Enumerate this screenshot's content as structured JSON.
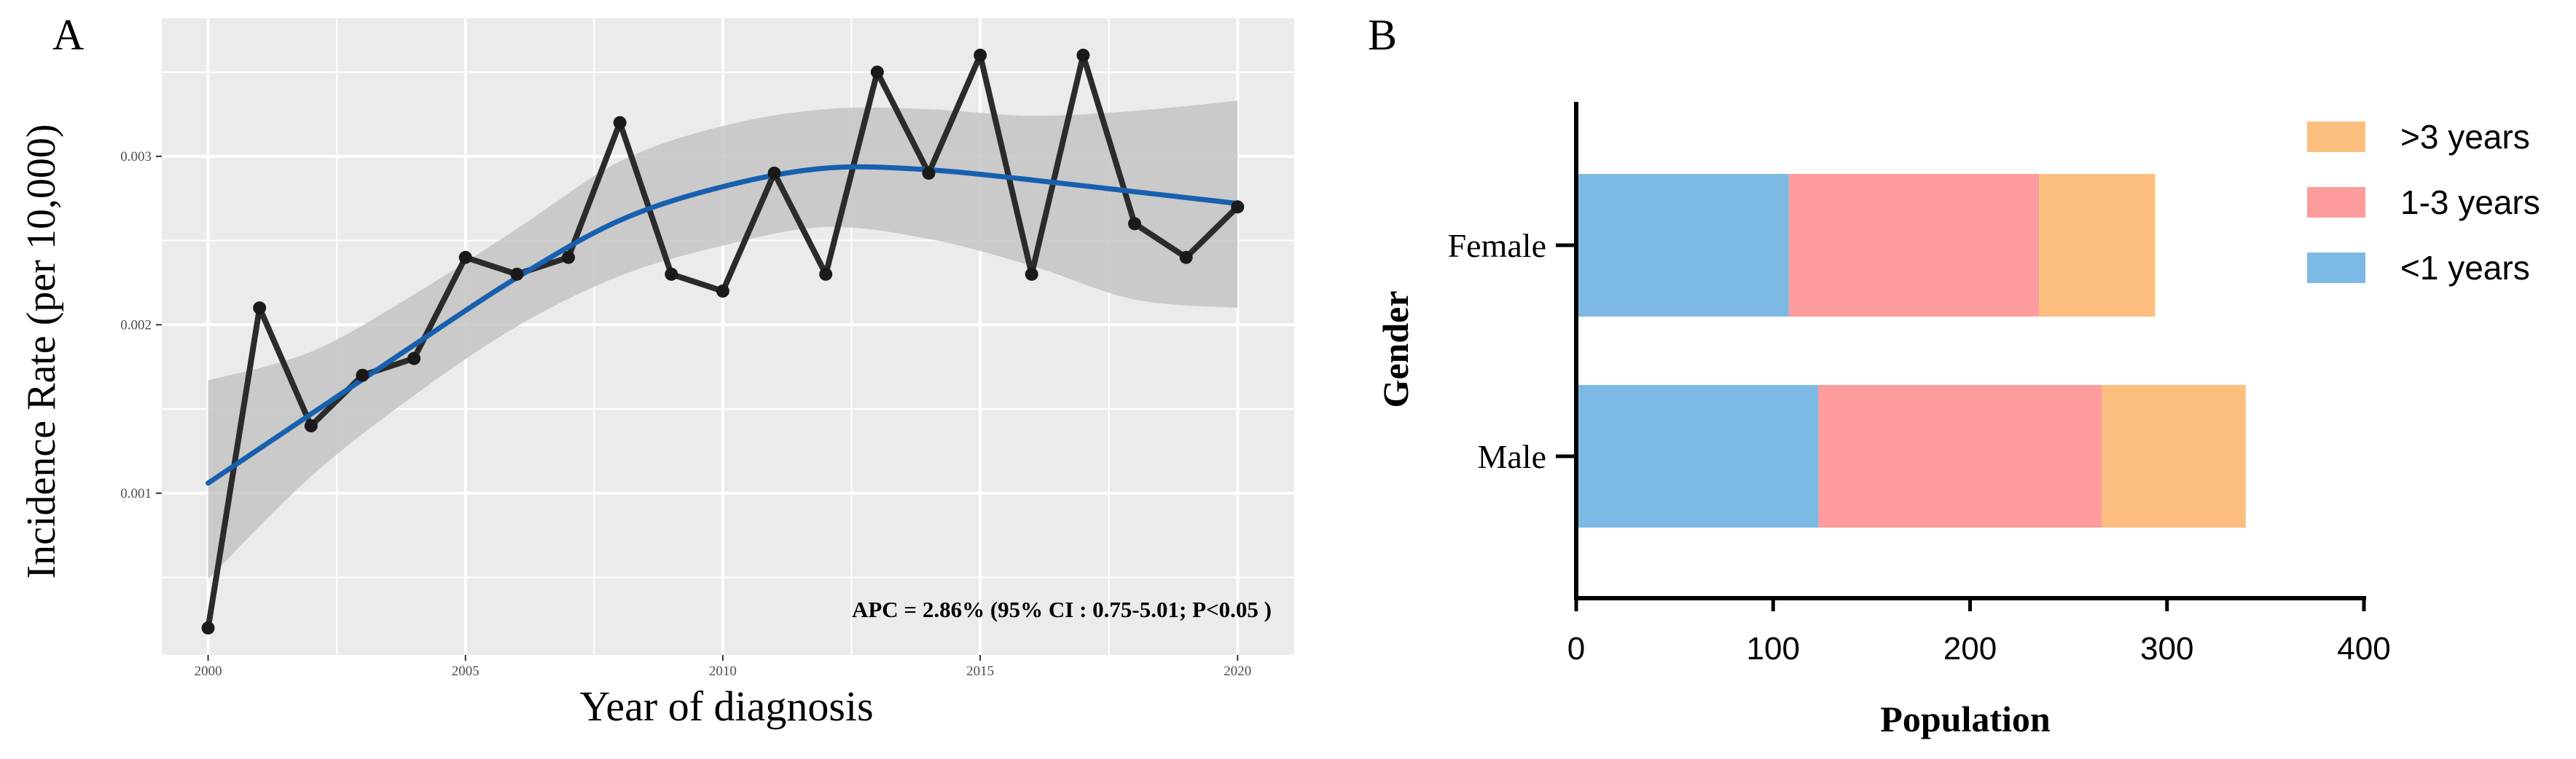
{
  "chart_data": [
    {
      "panel_label": "A",
      "type": "line",
      "xlabel": "Year of diagnosis",
      "ylabel": "Incidence Rate (per 10,000)",
      "xlim": [
        1999.1,
        2021.1
      ],
      "ylim": [
        4e-05,
        0.00382
      ],
      "x_ticks": [
        2000,
        2005,
        2010,
        2015,
        2020
      ],
      "y_ticks": [
        0.001,
        0.002,
        0.003
      ],
      "y_tick_labels": [
        "0.001",
        "0.002",
        "0.003"
      ],
      "grid": true,
      "annotation": "APC = 2.86% (95% CI : 0.75-5.01; P<0.05 )",
      "series": [
        {
          "name": "Observed incidence",
          "x": [
            2000,
            2001,
            2002,
            2003,
            2004,
            2005,
            2006,
            2007,
            2008,
            2009,
            2010,
            2011,
            2012,
            2013,
            2014,
            2015,
            2016,
            2017,
            2018,
            2019,
            2020
          ],
          "values": [
            0.0002,
            0.0021,
            0.0014,
            0.0017,
            0.0018,
            0.0024,
            0.0023,
            0.0024,
            0.0032,
            0.0023,
            0.0022,
            0.0029,
            0.0023,
            0.0035,
            0.0029,
            0.0036,
            0.0023,
            0.0036,
            0.0026,
            0.0024,
            0.0027
          ]
        },
        {
          "name": "Smoothed fit",
          "x": [
            2000,
            2002,
            2004,
            2006,
            2008,
            2010,
            2012,
            2014,
            2016,
            2018,
            2020
          ],
          "values": [
            0.00106,
            0.00147,
            0.00188,
            0.00228,
            0.00262,
            0.00282,
            0.00293,
            0.00292,
            0.00286,
            0.00279,
            0.00272
          ],
          "ci_lower": [
            0.00049,
            0.0011,
            0.00158,
            0.00199,
            0.00229,
            0.00247,
            0.00258,
            0.00251,
            0.00235,
            0.00215,
            0.0021
          ],
          "ci_upper": [
            0.00167,
            0.00184,
            0.00218,
            0.00257,
            0.00297,
            0.00318,
            0.00328,
            0.00328,
            0.00324,
            0.00327,
            0.00333
          ]
        }
      ],
      "colors": {
        "observed": "#2b2b2b",
        "fit": "#1760b0",
        "ci_band": "#c4c4c4",
        "panel_bg": "#ebebeb",
        "grid": "#ffffff"
      }
    },
    {
      "panel_label": "B",
      "type": "bar",
      "orientation": "horizontal",
      "stacked": true,
      "xlabel": "Population",
      "ylabel": "Gender",
      "categories": [
        "Female",
        "Male"
      ],
      "xlim": [
        0,
        400
      ],
      "x_ticks": [
        0,
        100,
        200,
        300,
        400
      ],
      "legend_position": "top-right",
      "series": [
        {
          "name": "<1 years",
          "legend_label": "<1 years",
          "values": [
            108,
            123
          ],
          "color": "#7cb9e4"
        },
        {
          "name": "1-3 years",
          "legend_label": "1-3 years",
          "values": [
            127,
            144
          ],
          "color": "#fd9b9d"
        },
        {
          "name": ">3 years",
          "legend_label": ">3 years",
          "values": [
            59,
            73
          ],
          "color": "#fdbf7f"
        }
      ],
      "legend_order": [
        ">3 years",
        "1-3 years",
        "<1 years"
      ]
    }
  ]
}
